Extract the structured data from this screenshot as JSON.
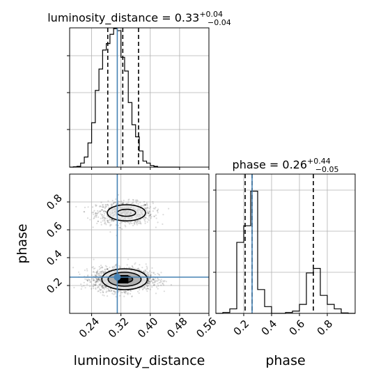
{
  "chart_data": {
    "type": "corner",
    "parameters": [
      "luminosity_distance",
      "phase"
    ],
    "truths": {
      "luminosity_distance": 0.31,
      "phase": 0.26
    },
    "truth_color": "#4682b4",
    "histograms": {
      "luminosity_distance": {
        "title_label": "luminosity_distance",
        "median_text": "0.33",
        "upper_err": "+0.04",
        "lower_err": "−0.04",
        "quantiles": [
          0.284,
          0.325,
          0.368
        ],
        "range": [
          0.18,
          0.56
        ],
        "bin_edges": [
          0.18,
          0.19,
          0.2,
          0.21,
          0.22,
          0.23,
          0.24,
          0.25,
          0.26,
          0.27,
          0.28,
          0.29,
          0.3,
          0.31,
          0.32,
          0.33,
          0.34,
          0.35,
          0.36,
          0.37,
          0.38,
          0.39,
          0.4,
          0.41,
          0.42,
          0.43,
          0.44,
          0.45,
          0.46,
          0.47,
          0.48
        ],
        "counts": [
          0,
          1,
          2,
          10,
          25,
          60,
          110,
          190,
          243,
          290,
          306,
          329,
          343,
          338,
          272,
          238,
          160,
          105,
          75,
          40,
          15,
          10,
          4,
          2,
          0,
          0,
          0,
          0,
          0,
          0
        ],
        "ylim": [
          0,
          345
        ]
      },
      "phase": {
        "title_label": "phase",
        "median_text": "0.26",
        "upper_err": "+0.44",
        "lower_err": "−0.05",
        "quantiles": [
          0.21,
          0.26,
          0.7
        ],
        "range": [
          0.0,
          1.0
        ],
        "bin_edges": [
          0.0,
          0.05,
          0.1,
          0.15,
          0.2,
          0.25,
          0.3,
          0.35,
          0.4,
          0.45,
          0.5,
          0.55,
          0.6,
          0.65,
          0.7,
          0.75,
          0.8,
          0.85,
          0.9,
          0.95,
          1.0
        ],
        "counts": [
          0,
          2,
          10,
          158,
          195,
          272,
          53,
          15,
          0,
          0,
          2,
          5,
          20,
          90,
          100,
          40,
          20,
          10,
          1,
          0
        ],
        "ylim": [
          0,
          310
        ]
      }
    },
    "joint": {
      "x": "luminosity_distance",
      "y": "phase",
      "xlim": [
        0.18,
        0.56
      ],
      "ylim": [
        0.0,
        1.0
      ],
      "clusters": [
        {
          "center": [
            0.33,
            0.72
          ],
          "sd": [
            0.038,
            0.04
          ],
          "n": 900
        },
        {
          "center": [
            0.325,
            0.245
          ],
          "sd": [
            0.04,
            0.04
          ],
          "n": 1900
        }
      ],
      "contours": [
        {
          "cx": 0.335,
          "cy": 0.722,
          "rx": 0.052,
          "ry": 0.058
        },
        {
          "cx": 0.335,
          "cy": 0.722,
          "rx": 0.025,
          "ry": 0.025
        },
        {
          "cx": 0.33,
          "cy": 0.245,
          "rx": 0.062,
          "ry": 0.075
        },
        {
          "cx": 0.33,
          "cy": 0.245,
          "rx": 0.045,
          "ry": 0.05
        },
        {
          "cx": 0.33,
          "cy": 0.245,
          "rx": 0.022,
          "ry": 0.025
        }
      ]
    },
    "axes": {
      "x_luminosity_distance": {
        "label": "luminosity_distance",
        "ticks": [
          0.24,
          0.32,
          0.4,
          0.48,
          0.56
        ],
        "tick_labels": [
          "0.24",
          "0.32",
          "0.40",
          "0.48",
          "0.56"
        ]
      },
      "y_phase": {
        "label": "phase",
        "ticks": [
          0.2,
          0.4,
          0.6,
          0.8
        ],
        "tick_labels": [
          "0.2",
          "0.4",
          "0.6",
          "0.8"
        ]
      },
      "x_phase": {
        "label": "phase",
        "ticks": [
          0.2,
          0.4,
          0.6,
          0.8
        ],
        "tick_labels": [
          "0.2",
          "0.4",
          "0.6",
          "0.8"
        ]
      }
    },
    "grid": true
  }
}
